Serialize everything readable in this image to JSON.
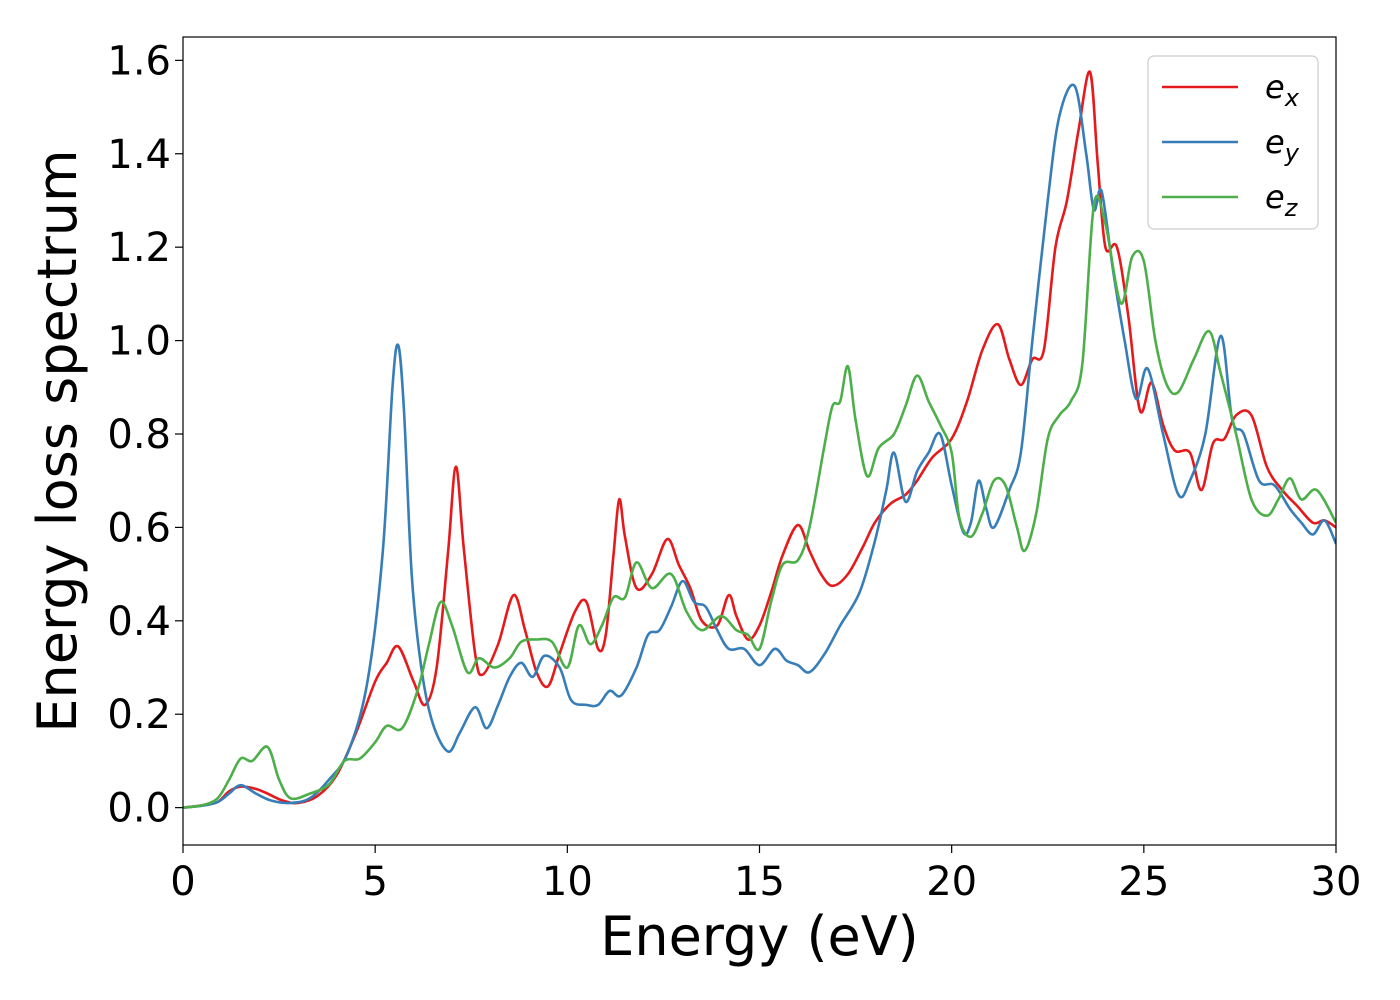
{
  "chart_data": {
    "type": "line",
    "xlabel": "Energy (eV)",
    "ylabel": "Energy loss spectrum",
    "xlim": [
      0,
      30
    ],
    "ylim": [
      -0.08,
      1.65
    ],
    "xticks": [
      0,
      5,
      10,
      15,
      20,
      25,
      30
    ],
    "yticks": [
      0.0,
      0.2,
      0.4,
      0.6,
      0.8,
      1.0,
      1.2,
      1.4,
      1.6
    ],
    "grid": false,
    "legend_position": "top-right",
    "series": [
      {
        "name": "e",
        "subscript": "x",
        "color": "#e41a1c",
        "points": [
          [
            0,
            0
          ],
          [
            0.5,
            0.005
          ],
          [
            0.9,
            0.012
          ],
          [
            1.2,
            0.035
          ],
          [
            1.5,
            0.045
          ],
          [
            1.9,
            0.04
          ],
          [
            2.2,
            0.03
          ],
          [
            2.6,
            0.015
          ],
          [
            3.0,
            0.01
          ],
          [
            3.5,
            0.025
          ],
          [
            4.0,
            0.07
          ],
          [
            4.5,
            0.16
          ],
          [
            5.0,
            0.27
          ],
          [
            5.3,
            0.31
          ],
          [
            5.6,
            0.345
          ],
          [
            6.0,
            0.27
          ],
          [
            6.3,
            0.22
          ],
          [
            6.6,
            0.3
          ],
          [
            6.9,
            0.55
          ],
          [
            7.1,
            0.73
          ],
          [
            7.3,
            0.56
          ],
          [
            7.6,
            0.33
          ],
          [
            7.8,
            0.285
          ],
          [
            8.2,
            0.35
          ],
          [
            8.6,
            0.455
          ],
          [
            8.9,
            0.38
          ],
          [
            9.2,
            0.29
          ],
          [
            9.5,
            0.26
          ],
          [
            9.8,
            0.33
          ],
          [
            10.2,
            0.42
          ],
          [
            10.5,
            0.44
          ],
          [
            10.8,
            0.34
          ],
          [
            11.0,
            0.37
          ],
          [
            11.2,
            0.54
          ],
          [
            11.35,
            0.66
          ],
          [
            11.5,
            0.58
          ],
          [
            11.8,
            0.47
          ],
          [
            12.2,
            0.5
          ],
          [
            12.6,
            0.575
          ],
          [
            12.9,
            0.52
          ],
          [
            13.2,
            0.47
          ],
          [
            13.5,
            0.4
          ],
          [
            13.9,
            0.39
          ],
          [
            14.2,
            0.455
          ],
          [
            14.4,
            0.41
          ],
          [
            14.7,
            0.36
          ],
          [
            15.0,
            0.39
          ],
          [
            15.3,
            0.46
          ],
          [
            15.6,
            0.54
          ],
          [
            16.0,
            0.605
          ],
          [
            16.3,
            0.55
          ],
          [
            16.6,
            0.5
          ],
          [
            16.9,
            0.475
          ],
          [
            17.3,
            0.5
          ],
          [
            17.7,
            0.56
          ],
          [
            18.0,
            0.61
          ],
          [
            18.4,
            0.65
          ],
          [
            18.8,
            0.67
          ],
          [
            19.1,
            0.7
          ],
          [
            19.5,
            0.75
          ],
          [
            20.0,
            0.79
          ],
          [
            20.4,
            0.87
          ],
          [
            20.8,
            0.98
          ],
          [
            21.2,
            1.035
          ],
          [
            21.5,
            0.96
          ],
          [
            21.8,
            0.905
          ],
          [
            22.1,
            0.96
          ],
          [
            22.4,
            0.98
          ],
          [
            22.7,
            1.2
          ],
          [
            23.0,
            1.3
          ],
          [
            23.3,
            1.45
          ],
          [
            23.6,
            1.575
          ],
          [
            23.8,
            1.38
          ],
          [
            24.0,
            1.2
          ],
          [
            24.3,
            1.2
          ],
          [
            24.6,
            1.05
          ],
          [
            24.9,
            0.85
          ],
          [
            25.2,
            0.91
          ],
          [
            25.5,
            0.82
          ],
          [
            25.8,
            0.765
          ],
          [
            26.2,
            0.76
          ],
          [
            26.5,
            0.68
          ],
          [
            26.8,
            0.78
          ],
          [
            27.1,
            0.79
          ],
          [
            27.4,
            0.84
          ],
          [
            27.8,
            0.84
          ],
          [
            28.2,
            0.73
          ],
          [
            28.6,
            0.68
          ],
          [
            29.0,
            0.645
          ],
          [
            29.4,
            0.61
          ],
          [
            29.7,
            0.615
          ],
          [
            30.0,
            0.6
          ]
        ]
      },
      {
        "name": "e",
        "subscript": "y",
        "color": "#377eb8",
        "points": [
          [
            0,
            0
          ],
          [
            0.5,
            0.004
          ],
          [
            0.9,
            0.012
          ],
          [
            1.2,
            0.03
          ],
          [
            1.5,
            0.048
          ],
          [
            1.9,
            0.03
          ],
          [
            2.3,
            0.015
          ],
          [
            2.8,
            0.01
          ],
          [
            3.3,
            0.02
          ],
          [
            3.8,
            0.06
          ],
          [
            4.3,
            0.12
          ],
          [
            4.8,
            0.27
          ],
          [
            5.2,
            0.55
          ],
          [
            5.45,
            0.9
          ],
          [
            5.6,
            0.99
          ],
          [
            5.75,
            0.85
          ],
          [
            5.95,
            0.5
          ],
          [
            6.2,
            0.3
          ],
          [
            6.5,
            0.18
          ],
          [
            6.9,
            0.12
          ],
          [
            7.2,
            0.16
          ],
          [
            7.6,
            0.215
          ],
          [
            7.9,
            0.17
          ],
          [
            8.2,
            0.22
          ],
          [
            8.5,
            0.28
          ],
          [
            8.8,
            0.31
          ],
          [
            9.1,
            0.28
          ],
          [
            9.4,
            0.325
          ],
          [
            9.8,
            0.3
          ],
          [
            10.1,
            0.23
          ],
          [
            10.5,
            0.22
          ],
          [
            10.8,
            0.22
          ],
          [
            11.1,
            0.25
          ],
          [
            11.4,
            0.24
          ],
          [
            11.8,
            0.3
          ],
          [
            12.1,
            0.37
          ],
          [
            12.4,
            0.38
          ],
          [
            12.7,
            0.43
          ],
          [
            13.0,
            0.485
          ],
          [
            13.3,
            0.44
          ],
          [
            13.6,
            0.43
          ],
          [
            13.9,
            0.38
          ],
          [
            14.2,
            0.34
          ],
          [
            14.6,
            0.34
          ],
          [
            15.0,
            0.305
          ],
          [
            15.4,
            0.34
          ],
          [
            15.7,
            0.315
          ],
          [
            16.0,
            0.305
          ],
          [
            16.3,
            0.29
          ],
          [
            16.7,
            0.33
          ],
          [
            17.1,
            0.39
          ],
          [
            17.6,
            0.46
          ],
          [
            18.0,
            0.57
          ],
          [
            18.3,
            0.68
          ],
          [
            18.5,
            0.76
          ],
          [
            18.8,
            0.655
          ],
          [
            19.1,
            0.72
          ],
          [
            19.4,
            0.76
          ],
          [
            19.7,
            0.8
          ],
          [
            20.0,
            0.69
          ],
          [
            20.3,
            0.59
          ],
          [
            20.5,
            0.61
          ],
          [
            20.7,
            0.7
          ],
          [
            20.9,
            0.64
          ],
          [
            21.1,
            0.6
          ],
          [
            21.5,
            0.68
          ],
          [
            21.8,
            0.76
          ],
          [
            22.1,
            1.0
          ],
          [
            22.5,
            1.3
          ],
          [
            22.8,
            1.48
          ],
          [
            23.2,
            1.545
          ],
          [
            23.5,
            1.4
          ],
          [
            23.7,
            1.28
          ],
          [
            23.9,
            1.32
          ],
          [
            24.2,
            1.15
          ],
          [
            24.5,
            1.0
          ],
          [
            24.8,
            0.875
          ],
          [
            25.1,
            0.94
          ],
          [
            25.5,
            0.8
          ],
          [
            25.9,
            0.67
          ],
          [
            26.2,
            0.7
          ],
          [
            26.6,
            0.8
          ],
          [
            27.0,
            1.01
          ],
          [
            27.3,
            0.83
          ],
          [
            27.6,
            0.8
          ],
          [
            28.0,
            0.7
          ],
          [
            28.4,
            0.69
          ],
          [
            28.8,
            0.64
          ],
          [
            29.1,
            0.61
          ],
          [
            29.4,
            0.585
          ],
          [
            29.7,
            0.615
          ],
          [
            30.0,
            0.565
          ]
        ]
      },
      {
        "name": "e",
        "subscript": "z",
        "color": "#4daf4a",
        "points": [
          [
            0,
            0
          ],
          [
            0.5,
            0.005
          ],
          [
            0.9,
            0.02
          ],
          [
            1.2,
            0.06
          ],
          [
            1.5,
            0.105
          ],
          [
            1.8,
            0.1
          ],
          [
            2.2,
            0.13
          ],
          [
            2.5,
            0.06
          ],
          [
            2.8,
            0.02
          ],
          [
            3.3,
            0.03
          ],
          [
            3.8,
            0.05
          ],
          [
            4.2,
            0.1
          ],
          [
            4.6,
            0.105
          ],
          [
            5.0,
            0.14
          ],
          [
            5.3,
            0.175
          ],
          [
            5.7,
            0.17
          ],
          [
            6.1,
            0.25
          ],
          [
            6.4,
            0.35
          ],
          [
            6.7,
            0.44
          ],
          [
            7.0,
            0.39
          ],
          [
            7.4,
            0.29
          ],
          [
            7.7,
            0.32
          ],
          [
            8.1,
            0.3
          ],
          [
            8.5,
            0.32
          ],
          [
            8.8,
            0.355
          ],
          [
            9.2,
            0.36
          ],
          [
            9.6,
            0.355
          ],
          [
            10.0,
            0.3
          ],
          [
            10.3,
            0.39
          ],
          [
            10.6,
            0.35
          ],
          [
            10.9,
            0.39
          ],
          [
            11.2,
            0.45
          ],
          [
            11.5,
            0.45
          ],
          [
            11.8,
            0.525
          ],
          [
            12.2,
            0.47
          ],
          [
            12.7,
            0.5
          ],
          [
            13.1,
            0.42
          ],
          [
            13.5,
            0.38
          ],
          [
            14.0,
            0.41
          ],
          [
            14.4,
            0.38
          ],
          [
            14.7,
            0.37
          ],
          [
            15.0,
            0.34
          ],
          [
            15.3,
            0.44
          ],
          [
            15.6,
            0.52
          ],
          [
            16.0,
            0.53
          ],
          [
            16.3,
            0.6
          ],
          [
            16.7,
            0.78
          ],
          [
            16.9,
            0.86
          ],
          [
            17.1,
            0.87
          ],
          [
            17.3,
            0.945
          ],
          [
            17.5,
            0.83
          ],
          [
            17.8,
            0.71
          ],
          [
            18.1,
            0.77
          ],
          [
            18.5,
            0.8
          ],
          [
            18.8,
            0.86
          ],
          [
            19.1,
            0.925
          ],
          [
            19.4,
            0.87
          ],
          [
            19.7,
            0.82
          ],
          [
            20.0,
            0.76
          ],
          [
            20.2,
            0.62
          ],
          [
            20.5,
            0.58
          ],
          [
            20.8,
            0.63
          ],
          [
            21.1,
            0.7
          ],
          [
            21.4,
            0.69
          ],
          [
            21.7,
            0.6
          ],
          [
            21.9,
            0.55
          ],
          [
            22.2,
            0.63
          ],
          [
            22.5,
            0.79
          ],
          [
            22.8,
            0.84
          ],
          [
            23.1,
            0.87
          ],
          [
            23.4,
            0.95
          ],
          [
            23.7,
            1.29
          ],
          [
            24.0,
            1.25
          ],
          [
            24.4,
            1.08
          ],
          [
            24.7,
            1.18
          ],
          [
            25.0,
            1.17
          ],
          [
            25.3,
            1.0
          ],
          [
            25.6,
            0.905
          ],
          [
            25.9,
            0.89
          ],
          [
            26.3,
            0.96
          ],
          [
            26.7,
            1.02
          ],
          [
            27.0,
            0.93
          ],
          [
            27.4,
            0.8
          ],
          [
            27.8,
            0.66
          ],
          [
            28.2,
            0.625
          ],
          [
            28.5,
            0.66
          ],
          [
            28.8,
            0.705
          ],
          [
            29.1,
            0.66
          ],
          [
            29.5,
            0.68
          ],
          [
            30.0,
            0.61
          ]
        ]
      }
    ]
  }
}
